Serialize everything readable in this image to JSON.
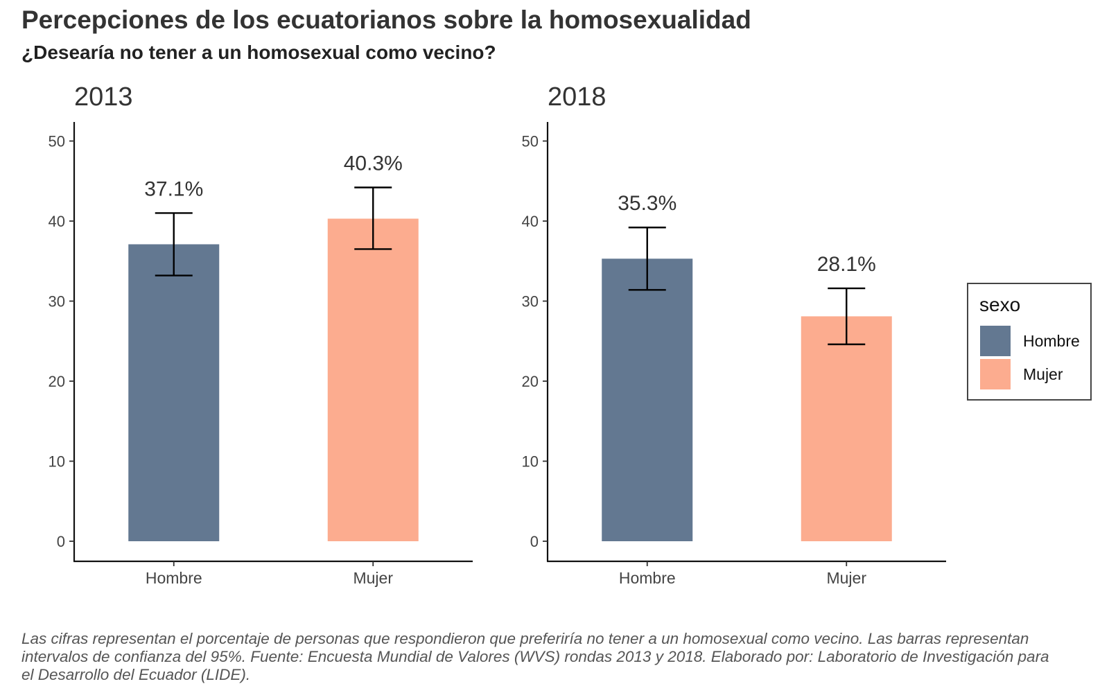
{
  "header": {
    "title": "Percepciones de los ecuatorianos sobre la homosexualidad",
    "subtitle": "¿Desearía no tener a un homosexual como vecino?"
  },
  "caption": "Las cifras representan el porcentaje de personas que respondieron que preferiría no tener a un homosexual como vecino. Las barras representan intervalos de confianza del 95%. Fuente: Encuesta Mundial de Valores (WVS) rondas 2013 y 2018. Elaborado por: Laboratorio de Investigación para el Desarrollo del Ecuador (LIDE).",
  "legend": {
    "title": "sexo",
    "items": [
      {
        "label": "Hombre",
        "color": "#637891"
      },
      {
        "label": "Mujer",
        "color": "#fcac8f"
      }
    ]
  },
  "chart_data": [
    {
      "type": "bar",
      "panel_title": "2013",
      "categories": [
        "Hombre",
        "Mujer"
      ],
      "values": [
        37.1,
        40.3
      ],
      "data_labels": [
        "37.1%",
        "40.3%"
      ],
      "error_bars": [
        [
          33.2,
          41.0
        ],
        [
          36.5,
          44.2
        ]
      ],
      "colors": [
        "#637891",
        "#fcac8f"
      ],
      "ylim": [
        0,
        50
      ],
      "yticks": [
        0,
        10,
        20,
        30,
        40,
        50
      ],
      "grid": false
    },
    {
      "type": "bar",
      "panel_title": "2018",
      "categories": [
        "Hombre",
        "Mujer"
      ],
      "values": [
        35.3,
        28.1
      ],
      "data_labels": [
        "35.3%",
        "28.1%"
      ],
      "error_bars": [
        [
          31.4,
          39.2
        ],
        [
          24.6,
          31.6
        ]
      ],
      "colors": [
        "#637891",
        "#fcac8f"
      ],
      "ylim": [
        0,
        50
      ],
      "yticks": [
        0,
        10,
        20,
        30,
        40,
        50
      ],
      "grid": false
    }
  ]
}
